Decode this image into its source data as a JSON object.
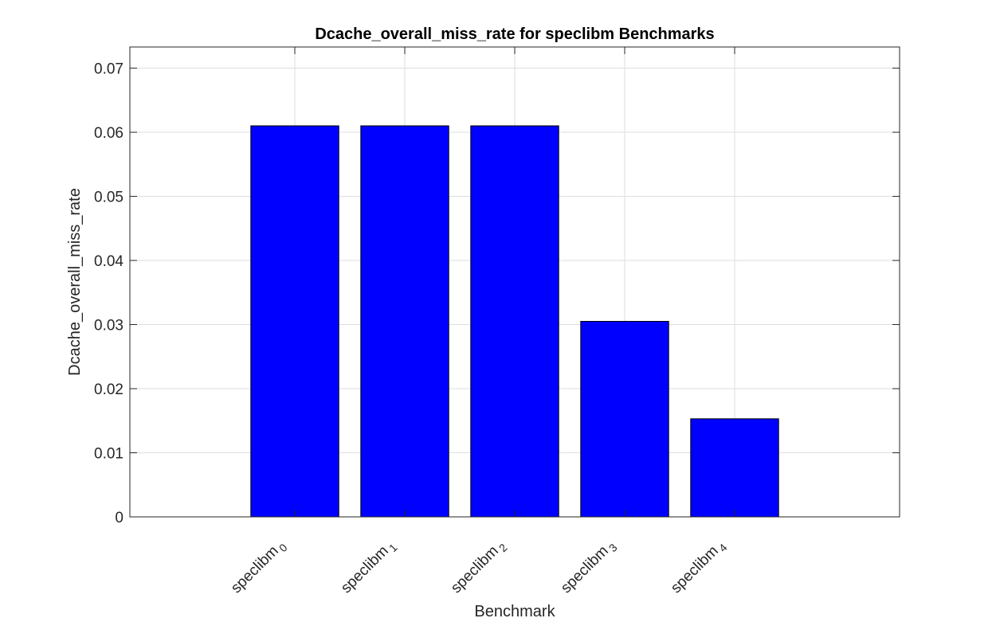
{
  "chart_data": {
    "type": "bar",
    "title": "Dcache_overall_miss_rate for speclibm Benchmarks",
    "xlabel": "Benchmark",
    "ylabel": "Dcache_overall_miss_rate",
    "categories": [
      {
        "base": "speclibm",
        "sub": "0"
      },
      {
        "base": "speclibm",
        "sub": "1"
      },
      {
        "base": "speclibm",
        "sub": "2"
      },
      {
        "base": "speclibm",
        "sub": "3"
      },
      {
        "base": "speclibm",
        "sub": "4"
      }
    ],
    "values": [
      0.061,
      0.061,
      0.061,
      0.0305,
      0.0153
    ],
    "ylim": [
      0,
      0.0733
    ],
    "yticks": [
      "0",
      "0.01",
      "0.02",
      "0.03",
      "0.04",
      "0.05",
      "0.06",
      "0.07"
    ],
    "bar_color": "#0000ff",
    "grid": true,
    "legend": "none"
  }
}
